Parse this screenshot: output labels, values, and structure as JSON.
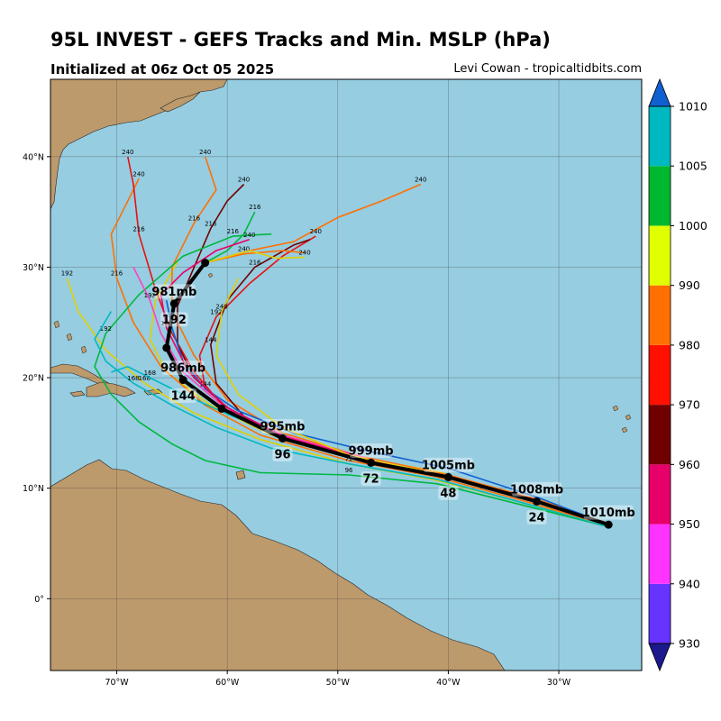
{
  "header": {
    "title": "95L INVEST - GEFS Tracks and Min. MSLP (hPa)",
    "subtitle": "Initialized at 06z Oct 05 2025",
    "credit": "Levi Cowan - tropicaltidbits.com"
  },
  "map": {
    "lon_range": [
      -76,
      -22.5
    ],
    "lat_range": [
      -6.5,
      47
    ],
    "lon_ticks": [
      {
        "v": -70,
        "label": "70°W"
      },
      {
        "v": -60,
        "label": "60°W"
      },
      {
        "v": -50,
        "label": "50°W"
      },
      {
        "v": -40,
        "label": "40°W"
      },
      {
        "v": -30,
        "label": "30°W"
      }
    ],
    "lat_ticks": [
      {
        "v": 0,
        "label": "0°"
      },
      {
        "v": 10,
        "label": "10°N"
      },
      {
        "v": 20,
        "label": "20°N"
      },
      {
        "v": 30,
        "label": "30°N"
      },
      {
        "v": 40,
        "label": "40°N"
      }
    ],
    "colors": {
      "ocean": "#96cde1",
      "land": "#bd9a6c",
      "grid": "#444444",
      "mean_track": "#000000"
    }
  },
  "mean_track": {
    "points": [
      {
        "lon": -25.5,
        "lat": 6.7,
        "mslp": "1010mb",
        "hour": ""
      },
      {
        "lon": -32.0,
        "lat": 8.8,
        "mslp": "1008mb",
        "hour": "24"
      },
      {
        "lon": -40.0,
        "lat": 11.0,
        "mslp": "1005mb",
        "hour": "48"
      },
      {
        "lon": -47.0,
        "lat": 12.3,
        "mslp": "999mb",
        "hour": "72"
      },
      {
        "lon": -55.0,
        "lat": 14.5,
        "mslp": "995mb",
        "hour": "96"
      },
      {
        "lon": -60.5,
        "lat": 17.2,
        "mslp": "",
        "hour": ""
      },
      {
        "lon": -64.0,
        "lat": 19.8,
        "mslp": "986mb",
        "hour": "144"
      },
      {
        "lon": -65.5,
        "lat": 22.7,
        "mslp": "",
        "hour": ""
      },
      {
        "lon": -64.8,
        "lat": 26.7,
        "mslp": "981mb",
        "hour": "192"
      },
      {
        "lon": -62.0,
        "lat": 30.4,
        "mslp": "",
        "hour": ""
      }
    ]
  },
  "members": [
    {
      "color": "#e0d000",
      "points": [
        [
          -25.5,
          6.8
        ],
        [
          -33,
          9.2
        ],
        [
          -41,
          11.5
        ],
        [
          -48,
          12.8
        ],
        [
          -56,
          14.8
        ],
        [
          -61.5,
          17.5
        ],
        [
          -65.5,
          20.5
        ],
        [
          -67,
          23.5
        ],
        [
          -66.5,
          27
        ],
        [
          -64.5,
          30.5
        ]
      ],
      "hours": [
        {
          "i": 4,
          "h": "96"
        },
        {
          "i": 6,
          "h": "144"
        }
      ]
    },
    {
      "color": "#e0d000",
      "points": [
        [
          -25.5,
          6.6
        ],
        [
          -33,
          8.6
        ],
        [
          -41,
          10.7
        ],
        [
          -49,
          12.2
        ],
        [
          -57,
          14.4
        ],
        [
          -63,
          16.8
        ],
        [
          -67.5,
          19.5
        ],
        [
          -71,
          22.5
        ],
        [
          -73.5,
          26
        ],
        [
          -74.5,
          29
        ]
      ],
      "hours": [
        {
          "i": 6,
          "h": "168"
        },
        {
          "i": 9,
          "h": "192"
        }
      ]
    },
    {
      "color": "#ff7000",
      "points": [
        [
          -25.5,
          6.8
        ],
        [
          -32,
          9
        ],
        [
          -40,
          11.2
        ],
        [
          -48,
          12.9
        ],
        [
          -55,
          15
        ],
        [
          -60,
          18
        ],
        [
          -63,
          22
        ],
        [
          -65,
          26
        ],
        [
          -65,
          30
        ],
        [
          -63,
          34
        ],
        [
          -61,
          37
        ],
        [
          -62,
          40
        ]
      ],
      "hours": [
        {
          "i": 9,
          "h": "216"
        },
        {
          "i": 11,
          "h": "240"
        }
      ]
    },
    {
      "color": "#ff7000",
      "points": [
        [
          -25.5,
          6.6
        ],
        [
          -33,
          8.8
        ],
        [
          -41,
          11
        ],
        [
          -49,
          12.5
        ],
        [
          -57,
          14.8
        ],
        [
          -62,
          17.5
        ],
        [
          -66,
          21
        ],
        [
          -68.5,
          25
        ],
        [
          -70,
          29
        ],
        [
          -70.5,
          33
        ],
        [
          -68,
          38
        ]
      ],
      "hours": [
        {
          "i": 8,
          "h": "216"
        },
        {
          "i": 10,
          "h": "240"
        }
      ]
    },
    {
      "color": "#ff7000",
      "points": [
        [
          -62,
          30.4
        ],
        [
          -58,
          31.5
        ],
        [
          -54,
          32.3
        ],
        [
          -50,
          34.5
        ],
        [
          -46,
          36
        ],
        [
          -42.5,
          37.5
        ]
      ],
      "hours": [
        {
          "i": 5,
          "h": "240"
        }
      ]
    },
    {
      "color": "#e81010",
      "points": [
        [
          -25.5,
          6.7
        ],
        [
          -32,
          8.7
        ],
        [
          -40,
          11
        ],
        [
          -47,
          12.5
        ],
        [
          -55,
          14.6
        ],
        [
          -60,
          17
        ],
        [
          -63,
          20.5
        ],
        [
          -65,
          24
        ],
        [
          -66.5,
          28
        ],
        [
          -68,
          33
        ],
        [
          -68.5,
          37.5
        ],
        [
          -69,
          40
        ]
      ],
      "hours": [
        {
          "i": 9,
          "h": "216"
        },
        {
          "i": 11,
          "h": "240"
        }
      ]
    },
    {
      "color": "#e81010",
      "points": [
        [
          -25.5,
          6.7
        ],
        [
          -32,
          8.9
        ],
        [
          -40,
          11.1
        ],
        [
          -47,
          12.4
        ],
        [
          -54,
          14.3
        ],
        [
          -59,
          16.5
        ],
        [
          -62,
          19
        ],
        [
          -62.5,
          22
        ],
        [
          -61,
          25.5
        ],
        [
          -58,
          28.5
        ],
        [
          -55,
          31
        ],
        [
          -52,
          32.8
        ]
      ],
      "hours": [
        {
          "i": 8,
          "h": "192"
        },
        {
          "i": 11,
          "h": "240"
        }
      ]
    },
    {
      "color": "#700000",
      "points": [
        [
          -25.5,
          6.7
        ],
        [
          -32,
          8.8
        ],
        [
          -40,
          11
        ],
        [
          -47,
          12.2
        ],
        [
          -54,
          14.2
        ],
        [
          -58.5,
          16.5
        ],
        [
          -61,
          19.5
        ],
        [
          -61.5,
          23
        ],
        [
          -60,
          27
        ],
        [
          -57.5,
          30
        ],
        [
          -54,
          32
        ],
        [
          -52.5,
          32.5
        ]
      ],
      "hours": [
        {
          "i": 7,
          "h": "144"
        },
        {
          "i": 9,
          "h": "216"
        }
      ]
    },
    {
      "color": "#700000",
      "points": [
        [
          -25.5,
          6.7
        ],
        [
          -32,
          8.8
        ],
        [
          -40,
          11
        ],
        [
          -47,
          12.4
        ],
        [
          -55,
          14.6
        ],
        [
          -60,
          17.3
        ],
        [
          -63,
          20
        ],
        [
          -64.5,
          23
        ],
        [
          -64.5,
          26.5
        ],
        [
          -63,
          30
        ],
        [
          -61.5,
          33.5
        ],
        [
          -60,
          36
        ],
        [
          -58.5,
          37.5
        ]
      ],
      "hours": [
        {
          "i": 10,
          "h": "216"
        },
        {
          "i": 12,
          "h": "240"
        }
      ]
    },
    {
      "color": "#00b840",
      "points": [
        [
          -25.5,
          6.5
        ],
        [
          -33,
          8.4
        ],
        [
          -41,
          10.4
        ],
        [
          -49,
          11.2
        ],
        [
          -57,
          11.4
        ],
        [
          -62,
          12.5
        ],
        [
          -65,
          14
        ],
        [
          -68,
          16
        ],
        [
          -70.5,
          18.5
        ],
        [
          -72,
          21
        ],
        [
          -71,
          24
        ],
        [
          -68,
          27.5
        ],
        [
          -64,
          31
        ],
        [
          -59.5,
          32.8
        ],
        [
          -56,
          33
        ]
      ],
      "hours": [
        {
          "i": 3,
          "h": "96"
        },
        {
          "i": 10,
          "h": "192"
        },
        {
          "i": 13,
          "h": "216"
        }
      ]
    },
    {
      "color": "#00b840",
      "points": [
        [
          -62,
          30.4
        ],
        [
          -60,
          31.5
        ],
        [
          -58.5,
          33
        ],
        [
          -57.5,
          35
        ]
      ],
      "hours": [
        {
          "i": 3,
          "h": "216"
        }
      ]
    },
    {
      "color": "#00b8c0",
      "points": [
        [
          -25.5,
          6.5
        ],
        [
          -33,
          8.6
        ],
        [
          -41,
          10.8
        ],
        [
          -49,
          12.2
        ],
        [
          -56,
          13.6
        ],
        [
          -61,
          15.5
        ],
        [
          -65,
          17.5
        ],
        [
          -68.5,
          19.5
        ],
        [
          -71,
          21.5
        ],
        [
          -72,
          23.5
        ],
        [
          -70.5,
          26
        ]
      ],
      "hours": [
        {
          "i": 3,
          "h": "72"
        },
        {
          "i": 7,
          "h": "168"
        }
      ]
    },
    {
      "color": "#00b8c0",
      "points": [
        [
          -25.5,
          6.7
        ],
        [
          -32,
          8.8
        ],
        [
          -40,
          11
        ],
        [
          -47,
          12.5
        ],
        [
          -54,
          14.5
        ],
        [
          -59.5,
          16.5
        ],
        [
          -64,
          18.5
        ],
        [
          -67,
          20
        ],
        [
          -69,
          21
        ],
        [
          -70.5,
          20.5
        ]
      ],
      "hours": [
        {
          "i": 7,
          "h": "168"
        }
      ]
    },
    {
      "color": "#1060d0",
      "points": [
        [
          -25.5,
          6.7
        ],
        [
          -32,
          9.2
        ],
        [
          -40,
          11.8
        ],
        [
          -47,
          13.3
        ],
        [
          -54,
          15
        ],
        [
          -59,
          17
        ],
        [
          -62,
          19
        ],
        [
          -64,
          21.5
        ],
        [
          -65,
          24.5
        ],
        [
          -65.5,
          27
        ]
      ],
      "hours": [
        {
          "i": 6,
          "h": "144"
        }
      ]
    },
    {
      "color": "#ff40c0",
      "points": [
        [
          -25.5,
          6.7
        ],
        [
          -32,
          8.8
        ],
        [
          -40,
          11.1
        ],
        [
          -47,
          12.6
        ],
        [
          -55,
          14.8
        ],
        [
          -60.5,
          17.5
        ],
        [
          -64,
          20.5
        ],
        [
          -66,
          24
        ],
        [
          -67,
          27
        ],
        [
          -68.5,
          30
        ]
      ],
      "hours": [
        {
          "i": 8,
          "h": "192"
        }
      ]
    },
    {
      "color": "#e8006a",
      "points": [
        [
          -25.5,
          6.7
        ],
        [
          -32,
          8.8
        ],
        [
          -40,
          11
        ],
        [
          -47,
          12.5
        ],
        [
          -55,
          14.7
        ],
        [
          -60,
          17.3
        ],
        [
          -63.5,
          20.5
        ],
        [
          -65.5,
          24.5
        ],
        [
          -66,
          27.5
        ],
        [
          -64,
          29.5
        ],
        [
          -61,
          31.5
        ],
        [
          -58,
          32.5
        ]
      ],
      "hours": [
        {
          "i": 7,
          "h": "168"
        },
        {
          "i": 11,
          "h": "240"
        }
      ]
    },
    {
      "color": "#ff7000",
      "points": [
        [
          -62,
          30.4
        ],
        [
          -58.5,
          31.2
        ],
        [
          -55,
          31.5
        ],
        [
          -53,
          31.3
        ]
      ],
      "hours": [
        {
          "i": 1,
          "h": "240"
        }
      ]
    },
    {
      "color": "#e0d000",
      "points": [
        [
          -62,
          30.4
        ],
        [
          -58,
          31.5
        ],
        [
          -55.5,
          30.8
        ],
        [
          -53,
          30.9
        ]
      ],
      "hours": [
        {
          "i": 3,
          "h": "240"
        }
      ]
    },
    {
      "color": "#e0d000",
      "points": [
        [
          -25.5,
          6.7
        ],
        [
          -33,
          9
        ],
        [
          -41,
          11.3
        ],
        [
          -49,
          13
        ],
        [
          -55,
          15.5
        ],
        [
          -59,
          18.5
        ],
        [
          -61,
          22
        ],
        [
          -60.5,
          26
        ],
        [
          -59,
          29
        ]
      ],
      "hours": [
        {
          "i": 7,
          "h": "240"
        }
      ]
    }
  ],
  "colorbar": {
    "ticks": [
      "930",
      "940",
      "950",
      "960",
      "970",
      "980",
      "990",
      "1000",
      "1005",
      "1010"
    ],
    "segments": [
      "#6633ff",
      "#ff33ff",
      "#e8006a",
      "#700000",
      "#ff1000",
      "#ff7000",
      "#e0ff00",
      "#00b830",
      "#00b8c0"
    ],
    "under_color": "#1a1a8c",
    "over_color": "#1060d0"
  }
}
